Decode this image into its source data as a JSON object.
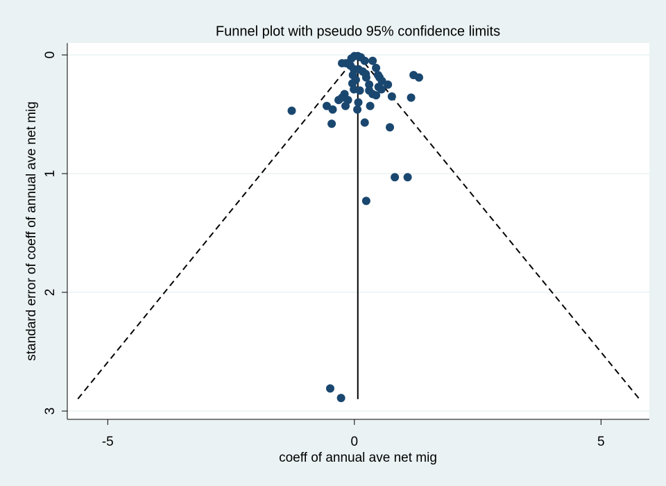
{
  "chart_data": {
    "type": "scatter",
    "title": "Funnel plot with pseudo 95% confidence limits",
    "x_label": "coeff of annual ave net mig",
    "y_label": "standard error of coeff of annual ave net mig",
    "xlim": [
      -5.82,
      5.98
    ],
    "ylim": [
      -0.1,
      3.07
    ],
    "y_reversed": true,
    "xticks": [
      -5,
      0,
      5
    ],
    "yticks": [
      0,
      1,
      2,
      3
    ],
    "grid": true,
    "color": "#1a476f",
    "line_color": "#000000",
    "lines": [
      {
        "style": "solid",
        "x": [
          0.07,
          0.07
        ],
        "y": [
          0,
          2.9
        ]
      },
      {
        "style": "dashed",
        "x": [
          0.07,
          -5.61
        ],
        "y": [
          0,
          2.9
        ]
      },
      {
        "style": "dashed",
        "x": [
          0.07,
          5.78
        ],
        "y": [
          0,
          2.9
        ]
      }
    ],
    "x": [
      0.0,
      0.07,
      0.13,
      -0.06,
      0.21,
      0.37,
      -0.17,
      -0.25,
      -0.08,
      -0.01,
      0.08,
      0.17,
      0.44,
      0.48,
      0.51,
      -0.03,
      0.23,
      0.24,
      0.56,
      1.2,
      1.31,
      0.03,
      -0.04,
      0.68,
      0.3,
      0.49,
      -0.01,
      0.11,
      0.3,
      0.55,
      0.37,
      0.44,
      0.76,
      1.15,
      -0.2,
      -0.25,
      -0.13,
      0.08,
      0.32,
      -0.56,
      -0.44,
      -0.32,
      -0.18,
      -1.27,
      0.06,
      0.21,
      -0.46,
      0.72,
      0.82,
      1.08,
      0.24,
      -0.49,
      -0.27
    ],
    "values": [
      0.01,
      0.01,
      0.02,
      0.03,
      0.05,
      0.05,
      0.07,
      0.07,
      0.09,
      0.12,
      0.12,
      0.14,
      0.11,
      0.17,
      0.19,
      0.17,
      0.16,
      0.19,
      0.22,
      0.17,
      0.19,
      0.21,
      0.24,
      0.25,
      0.25,
      0.27,
      0.29,
      0.3,
      0.3,
      0.29,
      0.33,
      0.34,
      0.35,
      0.36,
      0.33,
      0.36,
      0.38,
      0.4,
      0.43,
      0.43,
      0.46,
      0.38,
      0.43,
      0.47,
      0.46,
      0.57,
      0.58,
      0.61,
      1.03,
      1.03,
      1.23,
      2.81,
      2.89
    ]
  }
}
